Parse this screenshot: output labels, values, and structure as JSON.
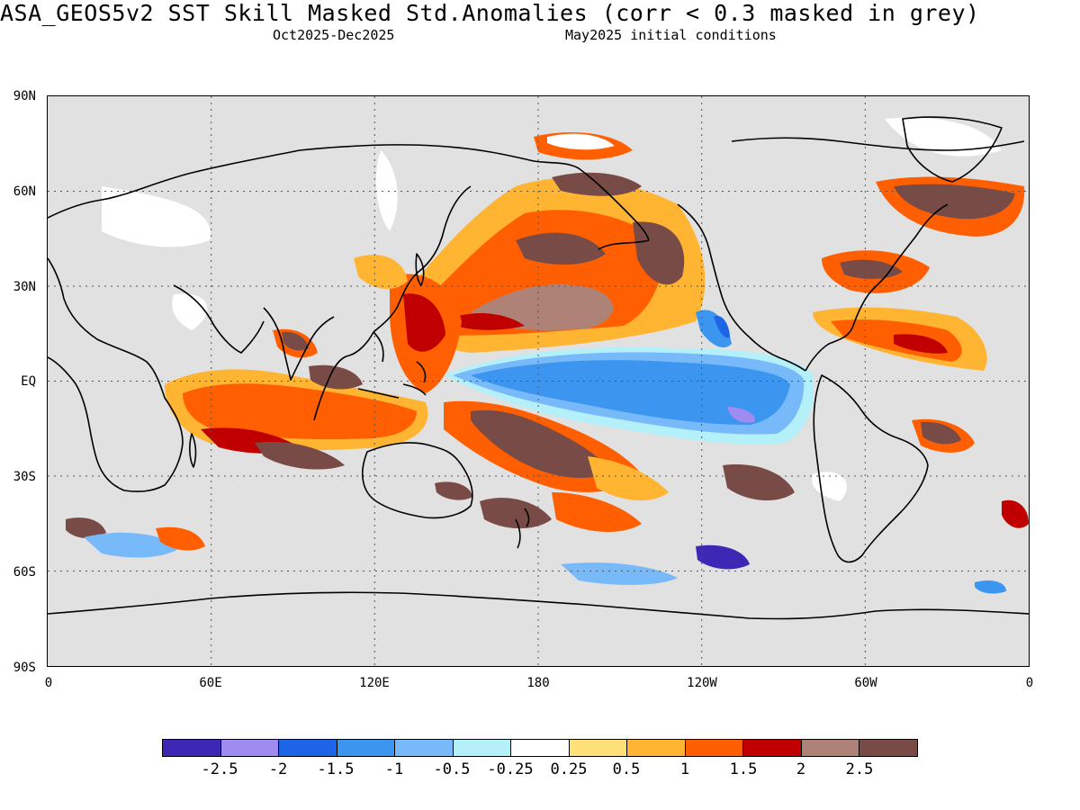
{
  "header": {
    "title": "ASA_GEOS5v2  SST Skill Masked Std.Anomalies (corr < 0.3 masked in grey)",
    "period": "Oct2025-Dec2025",
    "init": "May2025 initial conditions"
  },
  "axes": {
    "lat_labels": [
      "90N",
      "60N",
      "30N",
      "EQ",
      "30S",
      "60S",
      "90S"
    ],
    "lon_labels": [
      "0",
      "60E",
      "120E",
      "180",
      "120W",
      "60W",
      "0"
    ]
  },
  "colorbar": {
    "colors": [
      "#3c28b4",
      "#a08cf0",
      "#1e64e6",
      "#3c96f0",
      "#78b9fa",
      "#b4f0fa",
      "#ffffff",
      "#ffe178",
      "#ffb432",
      "#ff5f00",
      "#c00000",
      "#af8278",
      "#784b46"
    ],
    "labels": [
      "-2.5",
      "-2",
      "-1.5",
      "-1",
      "-0.5",
      "-0.25",
      "0.25",
      "0.5",
      "1",
      "1.5",
      "2",
      "2.5"
    ]
  },
  "map": {
    "mask_color": "#e1e1e1",
    "land_color": "#e1e1e1",
    "coast_color": "#000000"
  }
}
